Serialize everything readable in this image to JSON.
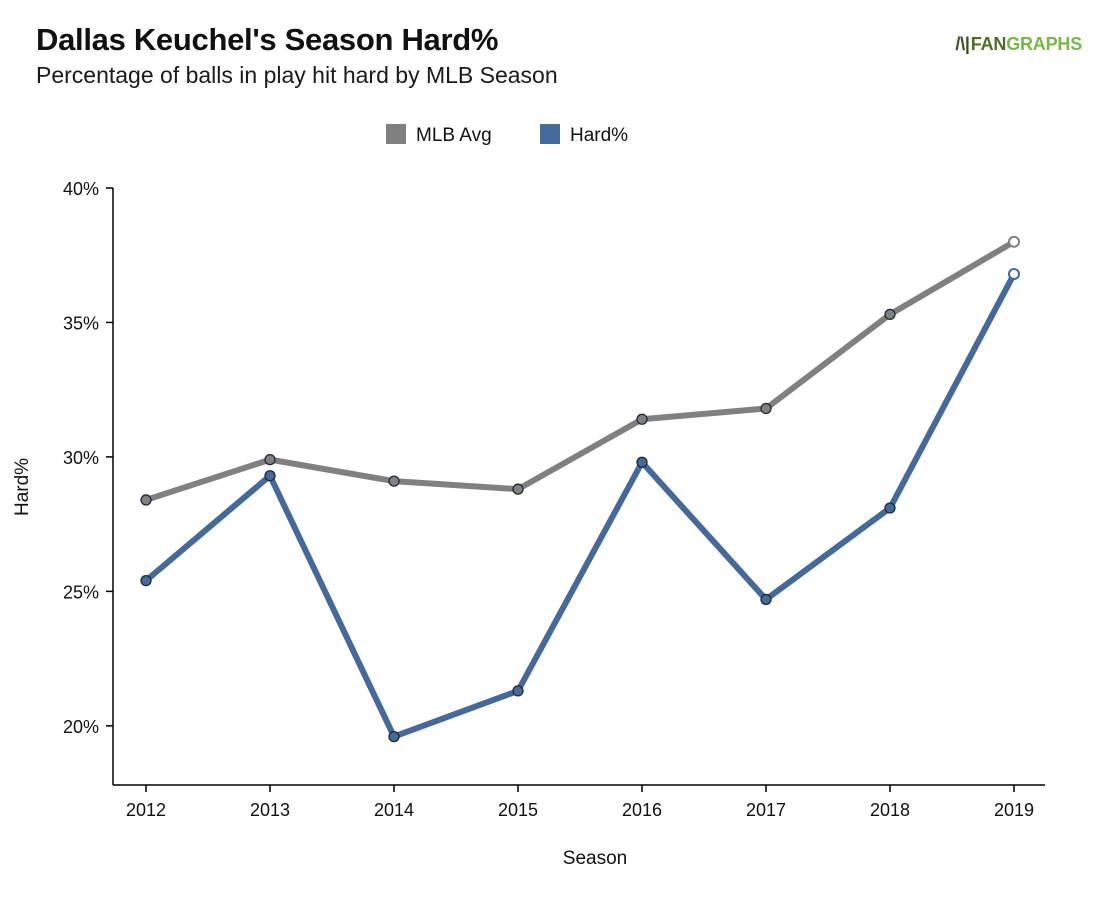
{
  "header": {
    "title": "Dallas Keuchel's Season Hard%",
    "subtitle": "Percentage of balls in play hit hard by MLB Season",
    "logo": {
      "fan": "FAN",
      "graphs": "GRAPHS"
    }
  },
  "colors": {
    "mlb_avg": "#808080",
    "hard_pct": "#44699a",
    "axis": "#000000",
    "marker_outline": "#1f2a36"
  },
  "chart_data": {
    "type": "line",
    "title": "Dallas Keuchel's Season Hard%",
    "subtitle": "Percentage of balls in play hit hard by MLB Season",
    "xlabel": "Season",
    "ylabel": "Hard%",
    "categories": [
      "2012",
      "2013",
      "2014",
      "2015",
      "2016",
      "2017",
      "2018",
      "2019"
    ],
    "ylim": [
      17.8,
      40
    ],
    "yticks": [
      20,
      25,
      30,
      35,
      40
    ],
    "ytick_labels": [
      "20%",
      "25%",
      "30%",
      "35%",
      "40%"
    ],
    "grid": false,
    "legend_position": "top-center",
    "series": [
      {
        "name": "MLB Avg",
        "color": "#808080",
        "values": [
          28.4,
          29.9,
          29.1,
          28.8,
          31.4,
          31.8,
          35.3,
          38.0
        ],
        "last_point_hollow": true
      },
      {
        "name": "Hard%",
        "color": "#44699a",
        "values": [
          25.4,
          29.3,
          19.6,
          21.3,
          29.8,
          24.7,
          28.1,
          36.8
        ],
        "last_point_hollow": true
      }
    ]
  }
}
